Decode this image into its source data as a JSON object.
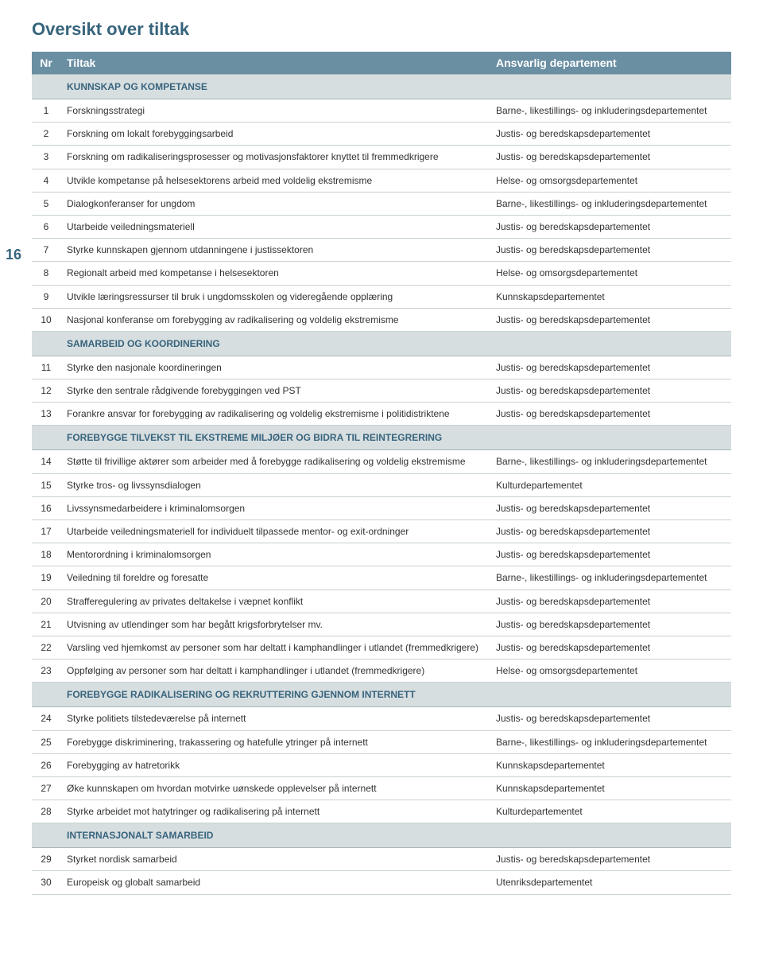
{
  "page_number": "16",
  "title": "Oversikt over tiltak",
  "headers": {
    "nr": "Nr",
    "tiltak": "Tiltak",
    "dep": "Ansvarlig departement"
  },
  "sections": [
    {
      "heading": "KUNNSKAP OG KOMPETANSE",
      "rows": [
        {
          "nr": "1",
          "t": "Forskningsstrategi",
          "d": "Barne-, likestillings- og inkluderingsdepartementet"
        },
        {
          "nr": "2",
          "t": "Forskning om lokalt forebyggingsarbeid",
          "d": "Justis- og beredskapsdepartementet"
        },
        {
          "nr": "3",
          "t": "Forskning om radikaliseringsprosesser og motivasjonsfaktorer knyttet til fremmedkrigere",
          "d": "Justis- og beredskapsdepartementet"
        },
        {
          "nr": "4",
          "t": "Utvikle kompetanse på helsesektorens arbeid med voldelig ekstremisme",
          "d": "Helse- og omsorgsdepartementet"
        },
        {
          "nr": "5",
          "t": "Dialogkonferanser for ungdom",
          "d": "Barne-, likestillings- og inkluderingsdepartementet"
        },
        {
          "nr": "6",
          "t": "Utarbeide veiledningsmateriell",
          "d": "Justis- og beredskapsdepartementet"
        },
        {
          "nr": "7",
          "t": "Styrke kunnskapen gjennom utdanningene i justissektoren",
          "d": "Justis- og beredskapsdepartementet"
        },
        {
          "nr": "8",
          "t": "Regionalt arbeid med kompetanse i helsesektoren",
          "d": "Helse- og omsorgsdepartementet"
        },
        {
          "nr": "9",
          "t": "Utvikle læringsressurser til bruk i ungdomsskolen og videregående opplæring",
          "d": "Kunnskapsdepartementet"
        },
        {
          "nr": "10",
          "t": "Nasjonal konferanse om forebygging av radikalisering og voldelig ekstremisme",
          "d": "Justis- og beredskapsdepartementet"
        }
      ]
    },
    {
      "heading": "SAMARBEID OG KOORDINERING",
      "rows": [
        {
          "nr": "11",
          "t": "Styrke den nasjonale koordineringen",
          "d": "Justis- og beredskapsdepartementet"
        },
        {
          "nr": "12",
          "t": "Styrke den sentrale rådgivende forebyggingen ved PST",
          "d": "Justis- og beredskapsdepartementet"
        },
        {
          "nr": "13",
          "t": "Forankre ansvar for forebygging av radikalisering og voldelig ekstremisme i politidistriktene",
          "d": "Justis- og beredskapsdepartementet"
        }
      ]
    },
    {
      "heading": "FOREBYGGE TILVEKST TIL EKSTREME MILJØER OG BIDRA TIL REINTEGRERING",
      "rows": [
        {
          "nr": "14",
          "t": "Støtte til frivillige aktører som arbeider med å forebygge radikalisering og voldelig ekstremisme",
          "d": "Barne-, likestillings- og inkluderingsdepartementet"
        },
        {
          "nr": "15",
          "t": "Styrke tros- og livssynsdialogen",
          "d": "Kulturdepartementet"
        },
        {
          "nr": "16",
          "t": "Livssynsmedarbeidere i kriminalomsorgen",
          "d": "Justis- og beredskapsdepartementet"
        },
        {
          "nr": "17",
          "t": "Utarbeide veiledningsmateriell for individuelt tilpassede mentor- og exit-ordninger",
          "d": "Justis- og beredskapsdepartementet"
        },
        {
          "nr": "18",
          "t": "Mentorordning i kriminalomsorgen",
          "d": "Justis- og beredskapsdepartementet"
        },
        {
          "nr": "19",
          "t": "Veiledning til foreldre og foresatte",
          "d": "Barne-, likestillings- og inkluderingsdepartementet"
        },
        {
          "nr": "20",
          "t": "Strafferegulering av privates deltakelse i væpnet konflikt",
          "d": "Justis- og beredskapsdepartementet"
        },
        {
          "nr": "21",
          "t": "Utvisning av utlendinger som har begått krigsforbrytelser mv.",
          "d": "Justis- og beredskapsdepartementet"
        },
        {
          "nr": "22",
          "t": "Varsling ved hjemkomst av personer som har deltatt i kamphandlinger i utlandet (fremmedkrigere)",
          "d": "Justis- og beredskapsdepartementet"
        },
        {
          "nr": "23",
          "t": "Oppfølging av personer som har deltatt i kamphandlinger i utlandet (fremmedkrigere)",
          "d": "Helse- og omsorgsdepartementet"
        }
      ]
    },
    {
      "heading": "FOREBYGGE RADIKALISERING OG REKRUTTERING GJENNOM INTERNETT",
      "rows": [
        {
          "nr": "24",
          "t": "Styrke politiets tilstedeværelse på internett",
          "d": "Justis- og beredskapsdepartementet"
        },
        {
          "nr": "25",
          "t": "Forebygge diskriminering, trakassering og hatefulle ytringer på internett",
          "d": "Barne-, likestillings- og inkluderingsdepartementet"
        },
        {
          "nr": "26",
          "t": "Forebygging av hatretorikk",
          "d": "Kunnskapsdepartementet"
        },
        {
          "nr": "27",
          "t": "Øke kunnskapen om hvordan motvirke uønskede opplevelser på internett",
          "d": "Kunnskapsdepartementet"
        },
        {
          "nr": "28",
          "t": "Styrke arbeidet mot hatytringer og radikalisering på internett",
          "d": "Kulturdepartementet"
        }
      ]
    },
    {
      "heading": "INTERNASJONALT SAMARBEID",
      "rows": [
        {
          "nr": "29",
          "t": "Styrket nordisk samarbeid",
          "d": "Justis- og beredskapsdepartementet"
        },
        {
          "nr": "30",
          "t": "Europeisk og globalt samarbeid",
          "d": "Utenriksdepartementet"
        }
      ]
    }
  ]
}
